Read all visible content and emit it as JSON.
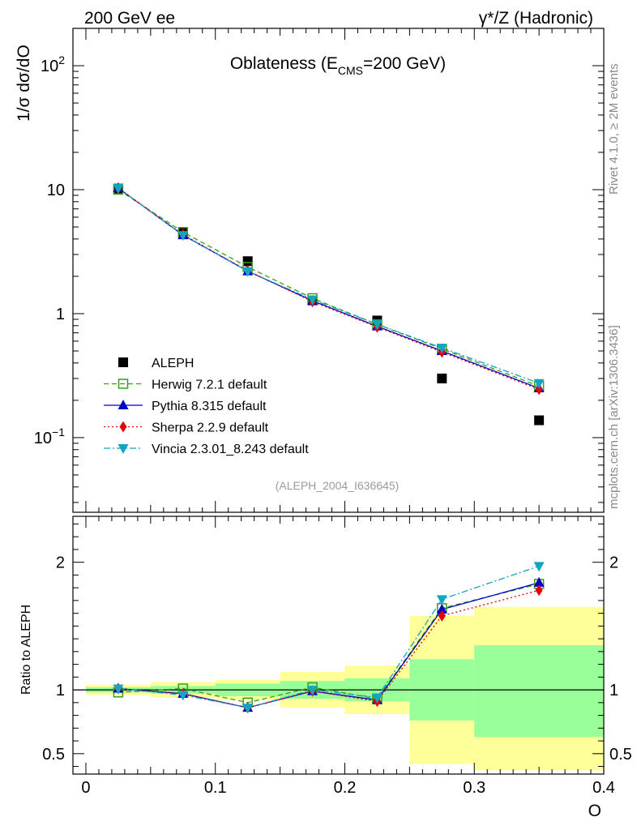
{
  "header": {
    "left": "200 GeV ee",
    "right": "γ*/Z (Hadronic)"
  },
  "side_labels": {
    "rivet": "Rivet 4.1.0, ≥ 2M events",
    "mcplots": "mcplots.cern.ch [arXiv:1306.3436]"
  },
  "chart_data": [
    {
      "type": "line",
      "panel": "main",
      "title": "Oblateness (E_CMS=200 GeV)",
      "title_main": "Oblateness (E",
      "title_sub": "CMS",
      "title_end": "=200 GeV)",
      "ylabel": "1/σ  dσ/dO",
      "yscale": "log",
      "ylim": [
        0.025,
        200
      ],
      "xlim": [
        -0.01,
        0.4
      ],
      "yticks": [
        {
          "value": 0.1,
          "base": "10",
          "exp": "−1"
        },
        {
          "value": 1,
          "base": "1",
          "exp": ""
        },
        {
          "value": 10,
          "base": "10",
          "exp": ""
        },
        {
          "value": 100,
          "base": "10",
          "exp": "2"
        }
      ],
      "analysis_label": "(ALEPH_2004_I636645)",
      "legend_position": "middle-left",
      "x": [
        0.025,
        0.075,
        0.125,
        0.175,
        0.225,
        0.275,
        0.35
      ],
      "series": [
        {
          "name": "ALEPH",
          "key": "aleph",
          "color": "#000000",
          "marker": "square-filled",
          "line": "none",
          "values": [
            10.2,
            4.5,
            2.65,
            1.28,
            0.88,
            0.3,
            0.138
          ]
        },
        {
          "name": "Herwig 7.2.1 default",
          "key": "herwig",
          "color": "#3a9a1a",
          "marker": "square-open",
          "line": "dashed",
          "values": [
            10.0,
            4.55,
            2.38,
            1.33,
            0.82,
            0.52,
            0.26
          ]
        },
        {
          "name": "Pythia 8.315 default",
          "key": "pythia",
          "color": "#0000c8",
          "marker": "triangle-up",
          "line": "solid",
          "values": [
            10.3,
            4.3,
            2.2,
            1.27,
            0.79,
            0.5,
            0.25
          ]
        },
        {
          "name": "Sherpa 2.2.9 default",
          "key": "sherpa",
          "color": "#e60000",
          "marker": "diamond",
          "line": "dotted",
          "values": [
            10.3,
            4.35,
            2.22,
            1.25,
            0.78,
            0.49,
            0.245
          ]
        },
        {
          "name": "Vincia 2.3.01_8.243 default",
          "key": "vincia",
          "color": "#13a4c2",
          "marker": "triangle-down",
          "line": "dashdot",
          "values": [
            10.3,
            4.3,
            2.2,
            1.3,
            0.82,
            0.53,
            0.275
          ]
        }
      ]
    },
    {
      "type": "line",
      "panel": "ratio",
      "ylabel": "Ratio to ALEPH",
      "xlabel": "O",
      "ylim": [
        0.34,
        2.36
      ],
      "xlim": [
        -0.01,
        0.4
      ],
      "xticks": [
        "0",
        "0.1",
        "0.2",
        "0.3",
        "0.4"
      ],
      "xtick_values": [
        0,
        0.1,
        0.2,
        0.3,
        0.4
      ],
      "yticks": [
        "0.5",
        "1",
        "2"
      ],
      "ytick_values": [
        0.5,
        1,
        2
      ],
      "bins": [
        [
          0,
          0.05
        ],
        [
          0.05,
          0.1
        ],
        [
          0.1,
          0.15
        ],
        [
          0.15,
          0.2
        ],
        [
          0.2,
          0.25
        ],
        [
          0.25,
          0.3
        ],
        [
          0.3,
          0.4
        ]
      ],
      "band_stat": [
        [
          0.98,
          1.02
        ],
        [
          0.97,
          1.03
        ],
        [
          0.95,
          1.05
        ],
        [
          0.93,
          1.07
        ],
        [
          0.91,
          1.09
        ],
        [
          0.76,
          1.24
        ],
        [
          0.63,
          1.35
        ]
      ],
      "band_total": [
        [
          0.96,
          1.04
        ],
        [
          0.94,
          1.06
        ],
        [
          0.92,
          1.08
        ],
        [
          0.86,
          1.14
        ],
        [
          0.81,
          1.19
        ],
        [
          0.42,
          1.58
        ],
        [
          0.37,
          1.65
        ]
      ],
      "x": [
        0.025,
        0.075,
        0.125,
        0.175,
        0.225,
        0.275,
        0.35
      ],
      "series": [
        {
          "name": "ALEPH",
          "key": "aleph",
          "color": "#000000",
          "marker": "none",
          "line": "solid",
          "values": [
            1,
            1,
            1,
            1,
            1,
            1,
            1
          ]
        },
        {
          "name": "Herwig 7.2.1 default",
          "key": "herwig",
          "color": "#3a9a1a",
          "marker": "square-open",
          "line": "dashed",
          "values": [
            0.98,
            1.01,
            0.9,
            1.02,
            0.93,
            1.64,
            1.83
          ]
        },
        {
          "name": "Pythia 8.315 default",
          "key": "pythia",
          "color": "#0000c8",
          "marker": "triangle-up",
          "line": "solid",
          "values": [
            1.01,
            0.97,
            0.86,
            0.99,
            0.92,
            1.63,
            1.84
          ]
        },
        {
          "name": "Sherpa 2.2.9 default",
          "key": "sherpa",
          "color": "#e60000",
          "marker": "diamond",
          "line": "dotted",
          "values": [
            1.01,
            0.97,
            0.86,
            0.99,
            0.91,
            1.58,
            1.78
          ]
        },
        {
          "name": "Vincia 2.3.01_8.243 default",
          "key": "vincia",
          "color": "#13a4c2",
          "marker": "triangle-down",
          "line": "dashdot",
          "values": [
            1.01,
            0.96,
            0.86,
            1.0,
            0.94,
            1.71,
            1.97
          ]
        }
      ]
    }
  ]
}
